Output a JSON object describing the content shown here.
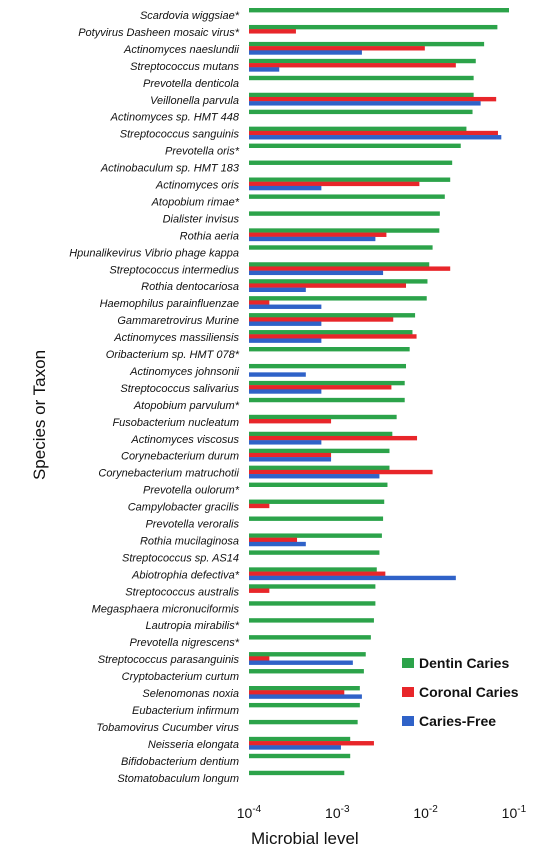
{
  "chart_data": {
    "type": "bar",
    "orientation": "horizontal",
    "x_scale": "log",
    "xlim": [
      0.0001,
      0.1
    ],
    "xlabel": "Microbial level",
    "ylabel": "Species or Taxon",
    "title": "",
    "legend_position": "bottom-right",
    "grid": false,
    "x_ticks": [
      {
        "base": "10",
        "exp": "-4"
      },
      {
        "base": "10",
        "exp": "-3"
      },
      {
        "base": "10",
        "exp": "-2"
      },
      {
        "base": "10",
        "exp": "-1"
      }
    ],
    "categories": [
      "Scardovia wiggsiae*",
      "Potyvirus Dasheen mosaic virus*",
      "Actinomyces naeslundii",
      "Streptococcus mutans",
      "Prevotella denticola",
      "Veillonella parvula",
      "Actinomyces sp. HMT 448",
      "Streptococcus sanguinis",
      "Prevotella oris*",
      "Actinobaculum sp. HMT 183",
      "Actinomyces oris",
      "Atopobium rimae*",
      "Dialister invisus",
      "Rothia aeria",
      "Hpunalikevirus Vibrio phage kappa",
      "Streptococcus intermedius",
      "Rothia dentocariosa",
      "Haemophilus parainfluenzae",
      "Gammaretrovirus Murine",
      "Actinomyces massiliensis",
      "Oribacterium sp. HMT 078*",
      "Actinomyces johnsonii",
      "Streptococcus salivarius",
      "Atopobium parvulum*",
      "Fusobacterium nucleatum",
      "Actinomyces viscosus",
      "Corynebacterium durum",
      "Corynebacterium matruchotii",
      "Prevotella oulorum*",
      "Campylobacter gracilis",
      "Prevotella veroralis",
      "Rothia mucilaginosa",
      "Streptococcus sp. AS14",
      "Abiotrophia defectiva*",
      "Streptococcus australis",
      "Megasphaera micronuciformis",
      "Lautropia mirabilis*",
      "Prevotella nigrescens*",
      "Streptococcus parasanguinis",
      "Cryptobacterium curtum",
      "Selenomonas noxia",
      "Eubacterium infirmum",
      "Tobamovirus Cucumber virus",
      "Neisseria elongata",
      "Bifidobacterium dentium",
      "Stomatobaculum longum"
    ],
    "series": [
      {
        "name": "Dentin Caries",
        "color": "#2ca34a",
        "values": [
          0.088,
          0.065,
          0.046,
          0.037,
          0.035,
          0.035,
          0.034,
          0.029,
          0.025,
          0.02,
          0.019,
          0.0165,
          0.0145,
          0.0143,
          0.012,
          0.011,
          0.0105,
          0.0103,
          0.0076,
          0.0071,
          0.0066,
          0.006,
          0.0058,
          0.0058,
          0.0047,
          0.0042,
          0.0039,
          0.0039,
          0.0037,
          0.0034,
          0.0033,
          0.0032,
          0.003,
          0.0028,
          0.0027,
          0.0027,
          0.0026,
          0.0024,
          0.0021,
          0.002,
          0.0018,
          0.0018,
          0.0017,
          0.0014,
          0.0014,
          0.0012
        ]
      },
      {
        "name": "Coronal Caries",
        "color": "#e8262a",
        "values": [
          0,
          0.00034,
          0.0098,
          0.022,
          0,
          0.063,
          0,
          0.066,
          0,
          0,
          0.0085,
          0,
          0,
          0.0036,
          0,
          0.019,
          0.006,
          0.00017,
          0.0043,
          0.0079,
          0,
          0,
          0.0041,
          0,
          0.00085,
          0.008,
          0.00085,
          0.012,
          0,
          0.00017,
          0,
          0.00035,
          0,
          0.0035,
          0.00017,
          0,
          0,
          0,
          0.00017,
          0,
          0.0012,
          0,
          0,
          0.0026,
          0,
          0
        ]
      },
      {
        "name": "Caries-Free",
        "color": "#2f62c8",
        "values": [
          0,
          0,
          0.0019,
          0.00022,
          0,
          0.042,
          0,
          0.072,
          0,
          0,
          0.00066,
          0,
          0,
          0.0027,
          0,
          0.0033,
          0.00044,
          0.00066,
          0.00066,
          0.00066,
          0,
          0.00044,
          0.00066,
          0,
          0,
          0.00066,
          0.00085,
          0.003,
          0,
          0,
          0,
          0.00044,
          0,
          0.022,
          0,
          0,
          0,
          0,
          0.0015,
          0,
          0.0019,
          0,
          0,
          0.0011,
          0,
          0
        ]
      }
    ]
  }
}
